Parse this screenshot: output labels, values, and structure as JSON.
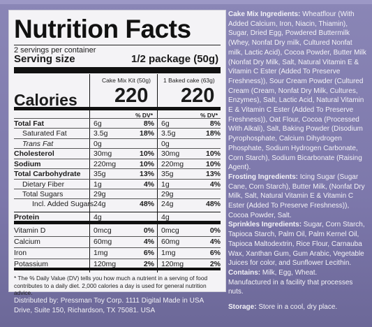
{
  "panel": {
    "title": "Nutrition Facts",
    "servings": "2 servings per container",
    "serving_size_label": "Serving size",
    "serving_size_value": "1/2 package (50g)",
    "col1_header": "Cake Mix Kit (50g)",
    "col2_header": "1 Baked cake (63g)",
    "calories_label": "Calories",
    "calories_1": "220",
    "calories_2": "220",
    "dv_header": "% DV*",
    "rows": [
      {
        "label": "Total Fat",
        "v1": "6g",
        "p1": "8%",
        "v2": "6g",
        "p2": "8%"
      },
      {
        "label": "Saturated Fat",
        "v1": "3.5g",
        "p1": "18%",
        "v2": "3.5g",
        "p2": "18%"
      },
      {
        "label": "Trans Fat",
        "v1": "0g",
        "p1": "",
        "v2": "0g",
        "p2": ""
      },
      {
        "label": "Cholesterol",
        "v1": "30mg",
        "p1": "10%",
        "v2": "30mg",
        "p2": "10%"
      },
      {
        "label": "Sodium",
        "v1": "220mg",
        "p1": "10%",
        "v2": "220mg",
        "p2": "10%"
      },
      {
        "label": "Total Carbohydrate",
        "v1": "35g",
        "p1": "13%",
        "v2": "35g",
        "p2": "13%"
      },
      {
        "label": "Dietary Fiber",
        "v1": "1g",
        "p1": "4%",
        "v2": "1g",
        "p2": "4%"
      },
      {
        "label": "Total Sugars",
        "v1": "29g",
        "p1": "",
        "v2": "29g",
        "p2": ""
      },
      {
        "label": "Incl. Added Sugars",
        "v1": "24g",
        "p1": "48%",
        "v2": "24g",
        "p2": "48%"
      },
      {
        "label": "Protein",
        "v1": "4g",
        "p1": "",
        "v2": "4g",
        "p2": ""
      },
      {
        "label": "Vitamin D",
        "v1": "0mcg",
        "p1": "0%",
        "v2": "0mcg",
        "p2": "0%"
      },
      {
        "label": "Calcium",
        "v1": "60mg",
        "p1": "4%",
        "v2": "60mg",
        "p2": "4%"
      },
      {
        "label": "Iron",
        "v1": "1mg",
        "p1": "6%",
        "v2": "1mg",
        "p2": "6%"
      },
      {
        "label": "Potassium",
        "v1": "120mg",
        "p1": "2%",
        "v2": "120mg",
        "p2": "2%"
      }
    ],
    "footnote": "* The % Daily Value (DV) tells you how much a nutrient in a serving of food contributes to a daily diet. 2,000 calories a day is used for general nutrition advice."
  },
  "distributor": {
    "line1": "Distributed by: Pressman Toy Corp. 1111 Digital   Made in USA",
    "line2": "Drive, Suite 150, Richardson, TX 75081. USA"
  },
  "ingredients": {
    "cake_label": "Cake Mix Ingredients:",
    "cake_text": " Wheatflour (With Added Calcium, Iron, Niacin, Thiamin), Sugar, Dried Egg, Powdered Buttermilk (Whey, Nonfat Dry milk, Cultured Nonfat milk, Lactic Acid), Cocoa Powder, Butter Milk (Nonfat Dry Milk, Salt, Natural Vitamin E & Vitamin C Ester (Added To Preserve Freshness)), Sour Cream Powder (Cultured Cream (Cream, Nonfat Dry Milk, Cultures, Enzymes), Salt, Lactic Acid, Natural Vitamin E & Vitamin C Ester (Added To Preserve Freshness)), Oat Flour, Cocoa (Processed With Alkali), Salt, Baking Powder (Disodium Pyrophosphate, Calcium Dihydrogen Phosphate, Sodium Hydrogen Carbonate, Corn Starch), Sodium Bicarbonate (Raising Agent).",
    "frosting_label": "Frosting Ingredients:",
    "frosting_text": " Icing Sugar (Sugar Cane, Corn Starch), Butter Milk, (Nonfat Dry Milk, Salt, Natural Vitamin E & Vitamin C Ester (Added To Preserve Freshness)), Cocoa Powder, Salt.",
    "sprinkles_label": "Sprinkles Ingredients:",
    "sprinkles_text": " Sugar, Corn Starch, Tapioca Starch, Palm Oil, Palm Kernel Oil, Tapioca Maltodextrin, Rice Flour, Carnauba Wax, Xanthan Gum, Gum Arabic, Vegetable Juices for color, and Sunflower Lecithin.",
    "contains_label": "Contains:",
    "contains_text": " Milk, Egg, Wheat.",
    "facility": "Manufactured in a facility that processes nuts.",
    "storage_label": "Storage:",
    "storage_text": " Store in a cool, dry place."
  }
}
